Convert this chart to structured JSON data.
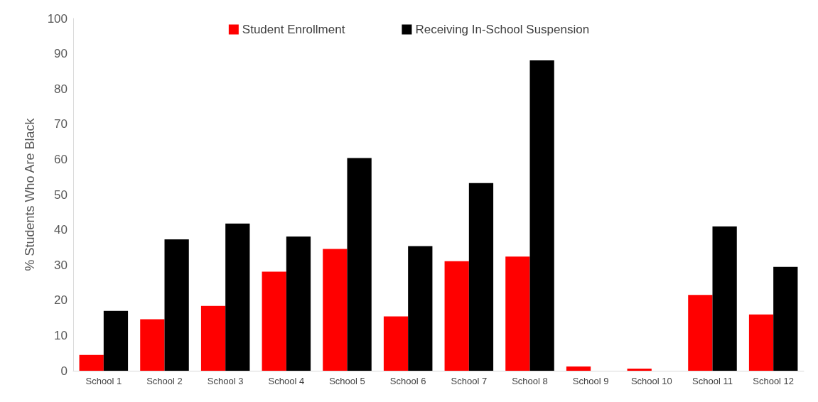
{
  "chart_data": {
    "type": "bar",
    "ylabel": "% Students Who Are Black",
    "categories": [
      "School 1",
      "School 2",
      "School 3",
      "School 4",
      "School 5",
      "School 6",
      "School 7",
      "School 8",
      "School 9",
      "School 10",
      "School 11",
      "School 12"
    ],
    "series": [
      {
        "name": "Student Enrollment",
        "color": "#ff0000",
        "values": [
          4.5,
          14.6,
          18.4,
          28.1,
          34.6,
          15.4,
          31.1,
          32.4,
          1.2,
          0.6,
          21.5,
          16
        ]
      },
      {
        "name": "Receiving In-School Suspension",
        "color": "#000000",
        "values": [
          17,
          37.3,
          41.8,
          38.1,
          60.4,
          35.4,
          53.3,
          88.1,
          0,
          0,
          41,
          29.5
        ]
      }
    ],
    "ylim": [
      0,
      100
    ],
    "yticks": [
      0,
      10,
      20,
      30,
      40,
      50,
      60,
      70,
      80,
      90,
      100
    ],
    "grid": false,
    "legend": "top"
  }
}
